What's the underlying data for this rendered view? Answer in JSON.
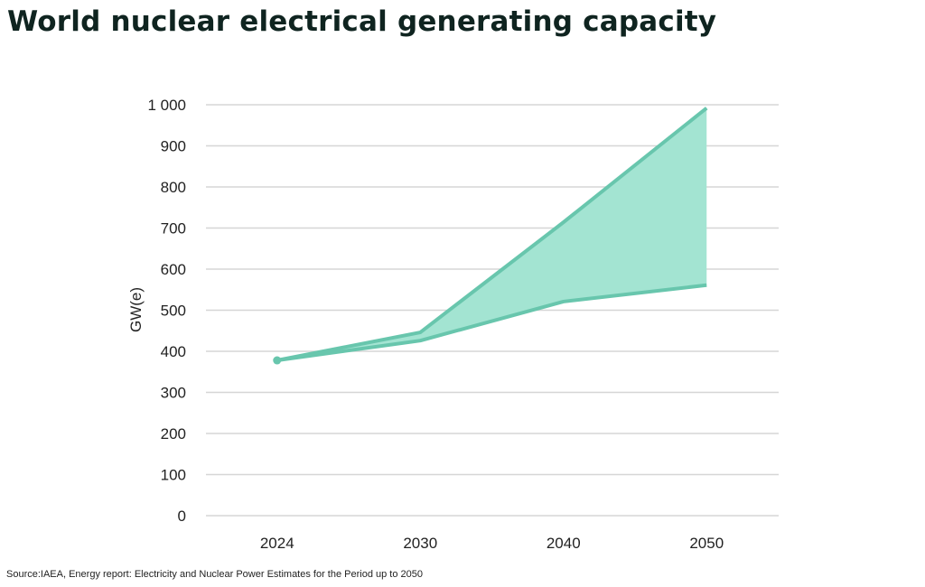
{
  "title": "World nuclear electrical generating capacity",
  "source": "Source:IAEA, Energy report: Electricity and Nuclear Power Estimates for the Period up to 2050",
  "chart_data": {
    "type": "area",
    "title": "World nuclear electrical generating capacity",
    "xlabel": "",
    "ylabel": "GW(e)",
    "categories": [
      "2024",
      "2030",
      "2040",
      "2050"
    ],
    "series": [
      {
        "values": [
          378,
          446,
          714,
          992
        ]
      },
      {
        "values": [
          378,
          426,
          521,
          561
        ]
      }
    ],
    "ylim": [
      0,
      1000
    ],
    "yticks": [
      0,
      100,
      200,
      300,
      400,
      500,
      600,
      700,
      800,
      900,
      1000
    ],
    "ytick_labels": [
      "0",
      "100",
      "200",
      "300",
      "400",
      "500",
      "600",
      "700",
      "800",
      "900",
      "1 000"
    ],
    "grid": true,
    "colors": {
      "line": "#68c6ad",
      "fill": "#a3e4d2",
      "grid": "#d6d6d6"
    }
  }
}
